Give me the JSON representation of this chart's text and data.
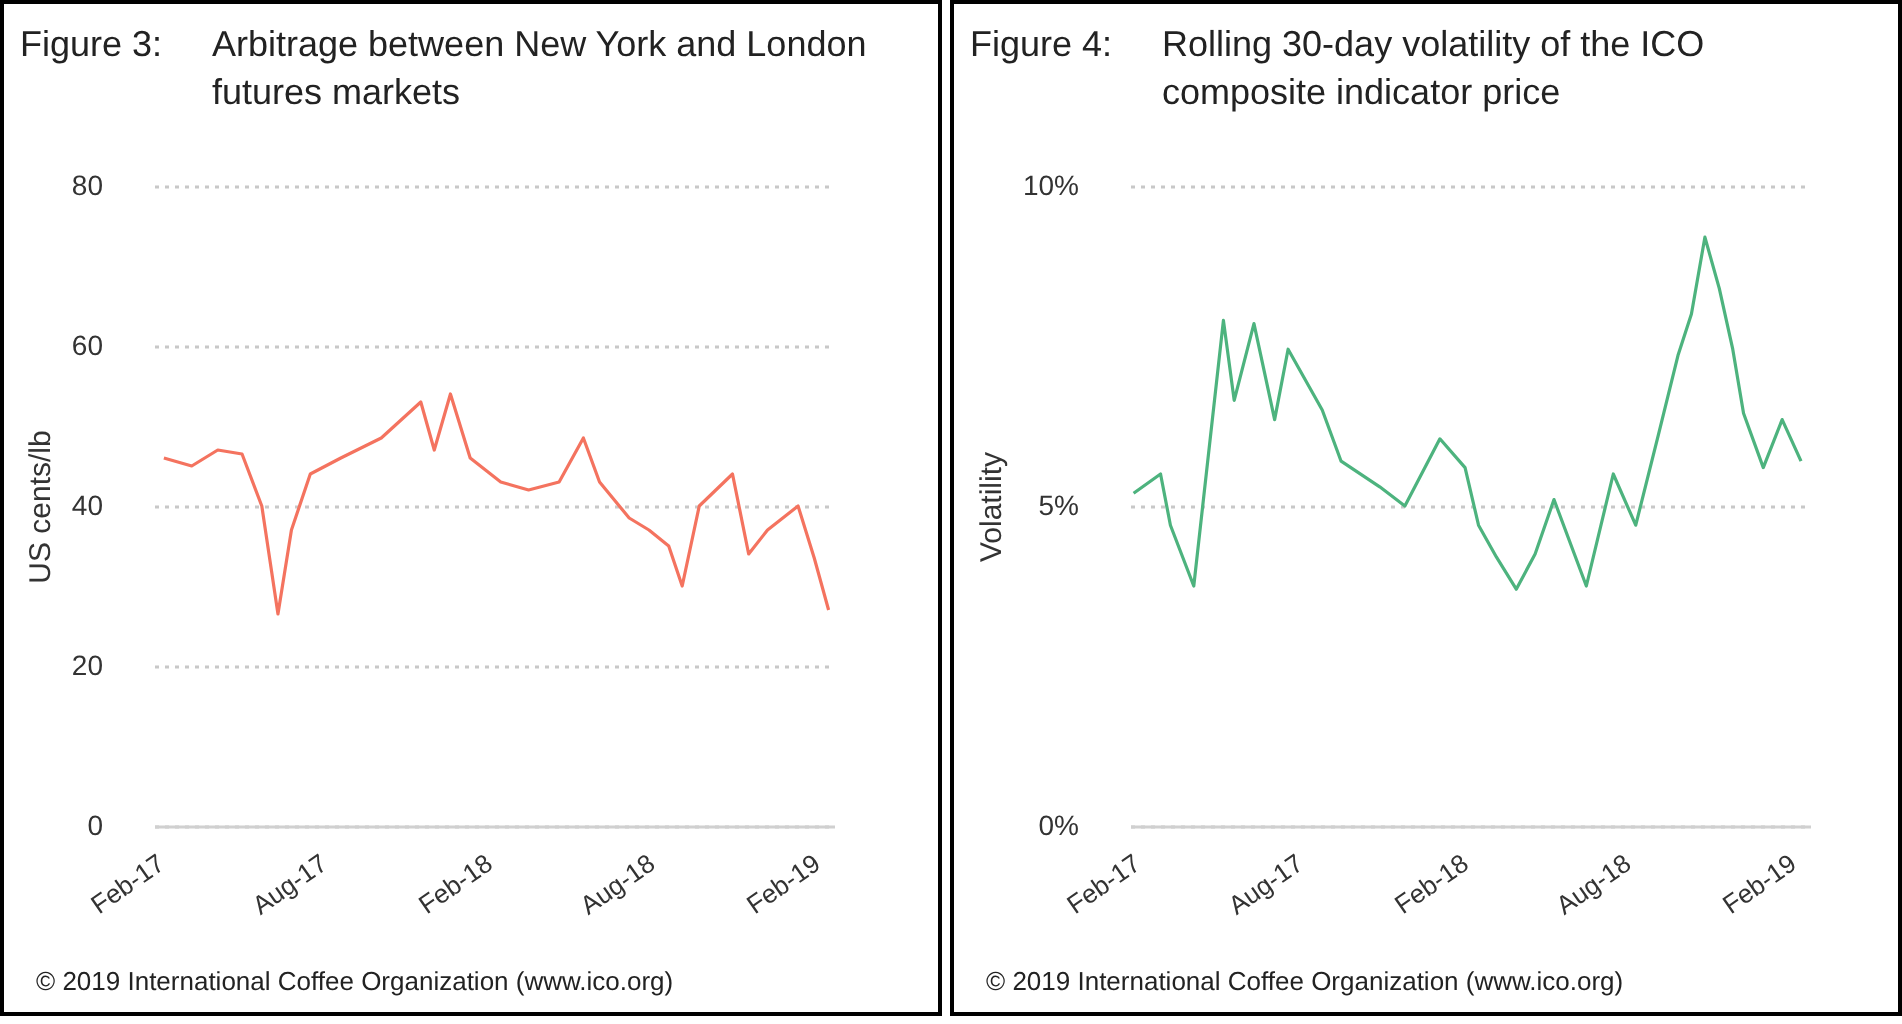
{
  "chart_data": [
    {
      "type": "line",
      "title": "Figure 3:",
      "subtitle": "Arbitrage between New York and London futures markets",
      "ylabel": "US cents/lb",
      "annotations": [
        "© 2019 International Coffee Organization (www.ico.org)"
      ],
      "x": [
        "2017-02-12",
        "2017-03-15",
        "2017-04-13",
        "2017-05-10",
        "2017-06-01",
        "2017-06-19",
        "2017-07-04",
        "2017-07-25",
        "2017-08-28",
        "2017-10-12",
        "2017-11-25",
        "2017-12-10",
        "2017-12-28",
        "2018-01-19",
        "2018-02-22",
        "2018-03-25",
        "2018-04-28",
        "2018-05-25",
        "2018-06-12",
        "2018-07-15",
        "2018-08-06",
        "2018-08-28",
        "2018-09-12",
        "2018-10-01",
        "2018-11-07",
        "2018-11-25",
        "2018-12-16",
        "2019-01-19",
        "2019-02-06",
        "2019-02-22"
      ],
      "series": [
        {
          "color": "#f4735f",
          "values": [
            46,
            45,
            47,
            46.5,
            40,
            26.5,
            37,
            44,
            46,
            48.5,
            53,
            47,
            54,
            46,
            43,
            42,
            43,
            48.5,
            43,
            38.5,
            37,
            35,
            30,
            40,
            44,
            34,
            37,
            40,
            33.5,
            27
          ]
        }
      ],
      "xlim": [
        "2017-02-01",
        "2019-02-28"
      ],
      "xticks": [
        {
          "value": "2017-02-01",
          "label": "Feb-17"
        },
        {
          "value": "2017-08-01",
          "label": "Aug-17"
        },
        {
          "value": "2018-02-01",
          "label": "Feb-18"
        },
        {
          "value": "2018-08-01",
          "label": "Aug-18"
        },
        {
          "value": "2019-02-01",
          "label": "Feb-19"
        }
      ],
      "ylim": [
        0,
        80
      ],
      "yticks": [
        0,
        20,
        40,
        60,
        80
      ],
      "grid": "y"
    },
    {
      "type": "line",
      "title": "Figure 4:",
      "subtitle": "Rolling 30-day volatility of the ICO composite indicator price",
      "ylabel": "Volatility",
      "annotations": [
        "© 2019 International Coffee Organization (www.ico.org)"
      ],
      "x": [
        "2017-02-05",
        "2017-03-07",
        "2017-03-18",
        "2017-04-13",
        "2017-05-16",
        "2017-05-28",
        "2017-06-19",
        "2017-07-12",
        "2017-07-27",
        "2017-09-03",
        "2017-09-24",
        "2017-11-06",
        "2017-12-04",
        "2018-01-12",
        "2018-02-09",
        "2018-02-24",
        "2018-03-16",
        "2018-04-07",
        "2018-04-28",
        "2018-05-19",
        "2018-06-24",
        "2018-07-24",
        "2018-08-18",
        "2018-09-12",
        "2018-10-04",
        "2018-10-19",
        "2018-11-03",
        "2018-11-19",
        "2018-12-04",
        "2018-12-16",
        "2019-01-07",
        "2019-01-28",
        "2019-02-18"
      ],
      "series": [
        {
          "color": "#4db37e",
          "values": [
            5.2,
            5.5,
            4.7,
            3.75,
            7.9,
            6.65,
            7.85,
            6.35,
            7.45,
            6.5,
            5.7,
            5.3,
            5.0,
            6.05,
            5.6,
            4.7,
            4.2,
            3.7,
            4.25,
            5.1,
            3.75,
            5.5,
            4.7,
            6.1,
            7.35,
            8.0,
            9.2,
            8.4,
            7.45,
            6.45,
            5.6,
            6.35,
            5.7
          ]
        }
      ],
      "xlim": [
        "2017-02-01",
        "2019-02-28"
      ],
      "xticks": [
        {
          "value": "2017-02-01",
          "label": "Feb-17"
        },
        {
          "value": "2017-08-01",
          "label": "Aug-17"
        },
        {
          "value": "2018-02-01",
          "label": "Feb-18"
        },
        {
          "value": "2018-08-01",
          "label": "Aug-18"
        },
        {
          "value": "2019-02-01",
          "label": "Feb-19"
        }
      ],
      "ylim": [
        0,
        10
      ],
      "yticks": [
        {
          "value": 0,
          "label": "0%"
        },
        {
          "value": 5,
          "label": "5%"
        },
        {
          "value": 10,
          "label": "10%"
        }
      ],
      "grid": "y"
    }
  ]
}
